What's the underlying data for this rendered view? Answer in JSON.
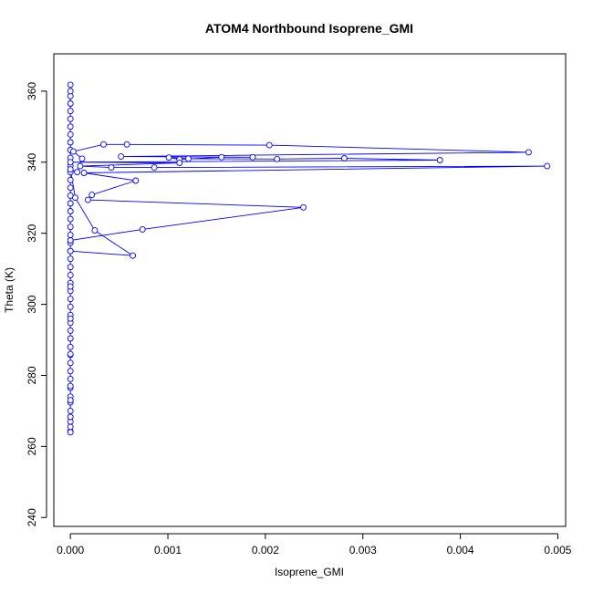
{
  "chart_data": {
    "type": "line",
    "title": "ATOM4 Northbound Isoprene_GMI",
    "xlabel": "Isoprene_GMI",
    "ylabel": "Theta (K)",
    "xlim": [
      -0.00017,
      0.00508
    ],
    "ylim": [
      237.5,
      370.5
    ],
    "x_ticks": [
      0.0,
      0.001,
      0.002,
      0.003,
      0.004,
      0.005
    ],
    "x_tick_labels": [
      "0.000",
      "0.001",
      "0.002",
      "0.003",
      "0.004",
      "0.005"
    ],
    "y_ticks": [
      240,
      260,
      280,
      300,
      320,
      340,
      360
    ],
    "y_tick_labels": [
      "240",
      "260",
      "280",
      "300",
      "320",
      "340",
      "360"
    ],
    "grid": false,
    "legend": "none",
    "series_color": "#0000ff",
    "marker": "open-circle",
    "series": [
      {
        "points": [
          [
            0.0,
            264.2
          ],
          [
            0.0,
            265.5
          ],
          [
            0.0,
            267.0
          ],
          [
            0.0,
            268.3
          ],
          [
            0.0,
            270.0
          ],
          [
            0.0,
            272.4
          ],
          [
            0.0,
            274.0
          ],
          [
            0.0,
            276.5
          ],
          [
            0.0,
            279.0
          ],
          [
            0.0,
            281.2
          ],
          [
            0.0,
            283.5
          ],
          [
            0.0,
            285.8
          ],
          [
            0.0,
            288.0
          ],
          [
            0.0,
            290.4
          ],
          [
            0.0,
            292.6
          ],
          [
            0.0,
            294.8
          ],
          [
            0.0,
            297.0
          ],
          [
            0.0,
            299.3
          ],
          [
            0.0,
            301.5
          ],
          [
            0.0,
            303.8
          ],
          [
            0.0,
            306.0
          ],
          [
            0.0,
            308.2
          ],
          [
            0.0,
            310.5
          ],
          [
            0.0,
            312.8
          ],
          [
            0.0,
            315.0
          ],
          [
            0.0,
            317.3
          ],
          [
            0.0,
            319.5
          ],
          [
            0.0,
            321.8
          ],
          [
            0.0,
            324.0
          ],
          [
            0.0,
            326.2
          ],
          [
            0.0,
            328.4
          ],
          [
            0.0,
            330.6
          ],
          [
            0.0,
            332.8
          ],
          [
            0.0,
            335.0
          ],
          [
            0.0,
            337.2
          ],
          [
            0.0,
            339.0
          ],
          [
            0.0,
            341.2
          ],
          [
            0.0,
            343.4
          ],
          [
            0.0,
            345.6
          ],
          [
            0.0,
            347.8
          ],
          [
            0.0,
            350.0
          ],
          [
            0.0,
            352.2
          ],
          [
            0.0,
            354.4
          ],
          [
            0.0,
            356.5
          ],
          [
            0.0,
            358.6
          ],
          [
            0.0,
            360.0
          ],
          [
            0.0,
            361.8
          ],
          [
            0.0,
            315.0
          ],
          [
            0.00064,
            313.7
          ],
          [
            0.00025,
            320.8
          ],
          [
            5e-05,
            330.0
          ],
          [
            0.0,
            338.0
          ],
          [
            7e-05,
            337.2
          ],
          [
            0.00012,
            341.0
          ],
          [
            3e-05,
            343.0
          ],
          [
            0.00034,
            345.0
          ],
          [
            0.00058,
            345.0
          ],
          [
            0.00204,
            344.8
          ],
          [
            0.0047,
            342.8
          ],
          [
            0.00052,
            341.6
          ],
          [
            0.00187,
            341.4
          ],
          [
            0.00155,
            341.4
          ],
          [
            0.00112,
            340.8
          ],
          [
            0.00101,
            341.3
          ],
          [
            0.00121,
            341.0
          ],
          [
            0.00212,
            340.9
          ],
          [
            0.00281,
            341.1
          ],
          [
            0.00379,
            340.6
          ],
          [
            0.0,
            340.0
          ],
          [
            0.00112,
            339.8
          ],
          [
            0.0001,
            338.9
          ],
          [
            0.00042,
            338.5
          ],
          [
            0.00086,
            338.5
          ],
          [
            0.00489,
            338.9
          ],
          [
            0.00014,
            337.0
          ],
          [
            0.00067,
            334.8
          ],
          [
            0.00022,
            330.8
          ],
          [
            0.00018,
            329.4
          ],
          [
            0.00239,
            327.3
          ],
          [
            0.00074,
            321.1
          ],
          [
            0.0,
            318.0
          ],
          [
            0.0,
            305.0
          ],
          [
            0.0,
            296.0
          ],
          [
            0.0,
            286.0
          ],
          [
            0.0,
            277.0
          ],
          [
            0.0,
            273.0
          ],
          [
            0.0,
            264.0
          ]
        ]
      }
    ]
  }
}
